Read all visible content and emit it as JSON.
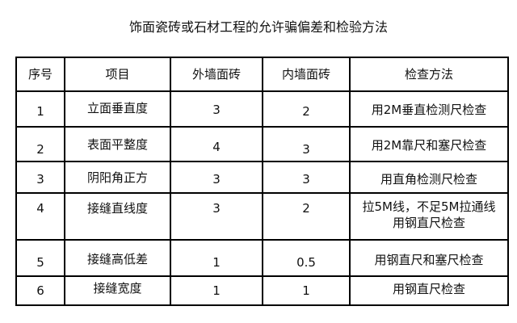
{
  "title": "饰面瓷砖或石材工程的允许骗偏差和检验方法",
  "table": {
    "headers": [
      "序号",
      "项目",
      "外墙面砖",
      "内墙面砖",
      "检查方法"
    ],
    "rows": [
      [
        "1",
        "立面垂直度",
        "3",
        "2",
        "用2M垂直检测尺检查"
      ],
      [
        "2",
        "表面平整度",
        "4",
        "3",
        "用2M靠尺和塞尺检查"
      ],
      [
        "3",
        "阴阳角正方",
        "3",
        "3",
        "用直角检测尺检查"
      ],
      [
        "4",
        "接缝直线度",
        "3",
        "2",
        "拉5M线，不足5M拉通线用钢直尺检查"
      ],
      [
        "5",
        "接缝高低差",
        "1",
        "0.5",
        "用钢直尺和塞尺检查"
      ],
      [
        "6",
        "接缝宽度",
        "1",
        "1",
        "用钢直尺检查"
      ]
    ]
  }
}
